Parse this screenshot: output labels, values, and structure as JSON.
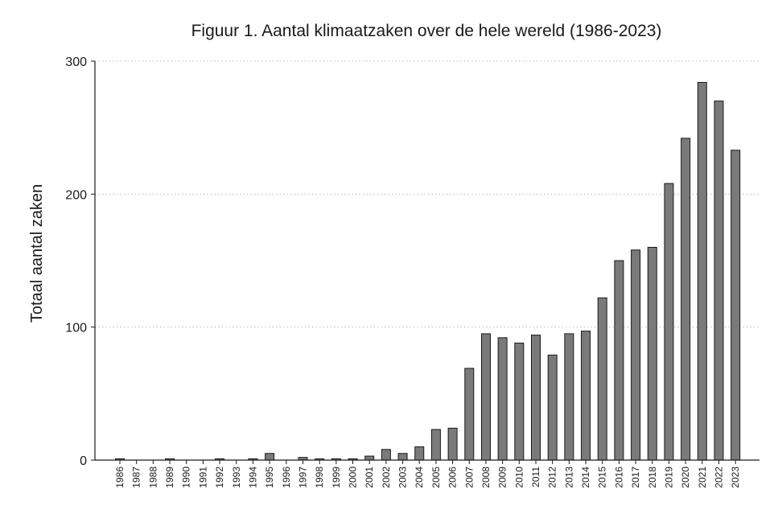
{
  "chart_data": {
    "type": "bar",
    "title": "Figuur 1. Aantal klimaatzaken over de hele wereld (1986-2023)",
    "xlabel": "",
    "ylabel": "Totaal aantal zaken",
    "ylim": [
      0,
      300
    ],
    "yticks": [
      0,
      100,
      200,
      300
    ],
    "grid": true,
    "categories": [
      "1986",
      "1987",
      "1988",
      "1989",
      "1990",
      "1991",
      "1992",
      "1993",
      "1994",
      "1995",
      "1996",
      "1997",
      "1998",
      "1999",
      "2000",
      "2001",
      "2002",
      "2003",
      "2004",
      "2005",
      "2006",
      "2007",
      "2008",
      "2009",
      "2010",
      "2011",
      "2012",
      "2013",
      "2014",
      "2015",
      "2016",
      "2017",
      "2018",
      "2019",
      "2020",
      "2021",
      "2022",
      "2023"
    ],
    "values": [
      1,
      0,
      0,
      1,
      0,
      0,
      1,
      0,
      1,
      5,
      0,
      2,
      1,
      1,
      1,
      3,
      8,
      5,
      10,
      23,
      24,
      69,
      95,
      92,
      88,
      94,
      79,
      95,
      97,
      122,
      150,
      158,
      160,
      208,
      242,
      284,
      270,
      233
    ],
    "bar_color": "#7a7a7a",
    "bar_edge_color": "#1a1a1a"
  }
}
